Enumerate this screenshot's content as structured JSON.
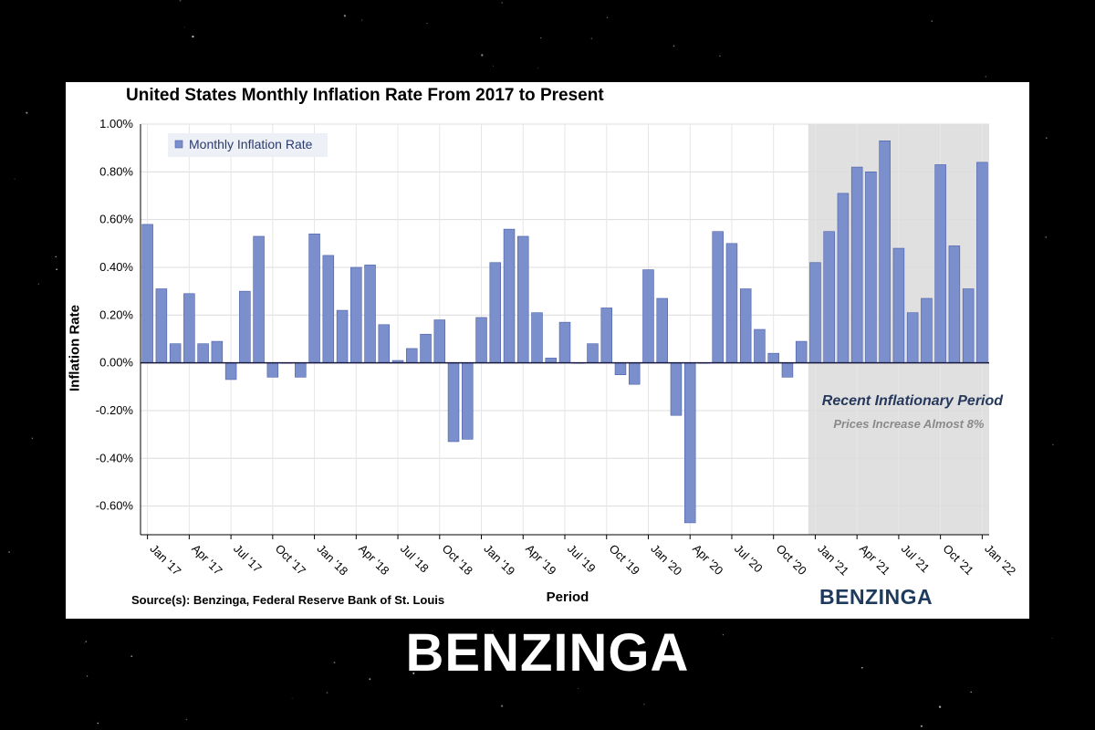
{
  "chart_data": {
    "type": "bar",
    "title": "United States Monthly Inflation Rate From 2017 to Present",
    "xlabel": "Period",
    "ylabel": "Inflation Rate",
    "ylim": [
      -0.72,
      1.0
    ],
    "yticks": [
      -0.6,
      -0.4,
      -0.2,
      0.0,
      0.2,
      0.4,
      0.6,
      0.8,
      1.0
    ],
    "ytick_labels": [
      "-0.60%",
      "-0.40%",
      "-0.20%",
      "0.00%",
      "0.20%",
      "0.40%",
      "0.60%",
      "0.80%",
      "1.00%"
    ],
    "grid": true,
    "legend_position": "top-left",
    "bar_color": "#7b8fcc",
    "bar_border_color": "#4a5fa8",
    "categories": [
      "Jan '17",
      "Feb '17",
      "Mar '17",
      "Apr '17",
      "May '17",
      "Jun '17",
      "Jul '17",
      "Aug '17",
      "Sep '17",
      "Oct '17",
      "Nov '17",
      "Dec '17",
      "Jan '18",
      "Feb '18",
      "Mar '18",
      "Apr '18",
      "May '18",
      "Jun '18",
      "Jul '18",
      "Aug '18",
      "Sep '18",
      "Oct '18",
      "Nov '18",
      "Dec '18",
      "Jan '19",
      "Feb '19",
      "Mar '19",
      "Apr '19",
      "May '19",
      "Jun '19",
      "Jul '19",
      "Aug '19",
      "Sep '19",
      "Oct '19",
      "Nov '19",
      "Dec '19",
      "Jan '20",
      "Feb '20",
      "Mar '20",
      "Apr '20",
      "May '20",
      "Jun '20",
      "Jul '20",
      "Aug '20",
      "Sep '20",
      "Oct '20",
      "Nov '20",
      "Dec '20",
      "Jan '21",
      "Feb '21",
      "Mar '21",
      "Apr '21",
      "May '21",
      "Jun '21",
      "Jul '21",
      "Aug '21",
      "Sep '21",
      "Oct '21",
      "Nov '21",
      "Dec '21",
      "Jan '22"
    ],
    "tick_labels": [
      "Jan '17",
      "Apr '17",
      "Jul '17",
      "Oct '17",
      "Jan '18",
      "Apr '18",
      "Jul '18",
      "Oct '18",
      "Jan '19",
      "Apr '19",
      "Jul '19",
      "Oct '19",
      "Jan '20",
      "Apr '20",
      "Jul '20",
      "Oct '20",
      "Jan '21",
      "Apr '21",
      "Jul '21",
      "Oct '21",
      "Jan '22"
    ],
    "series": [
      {
        "name": "Monthly Inflation Rate",
        "values": [
          0.58,
          0.31,
          0.08,
          0.29,
          0.08,
          0.09,
          -0.07,
          0.3,
          0.53,
          -0.06,
          0.0,
          -0.06,
          0.54,
          0.45,
          0.22,
          0.4,
          0.41,
          0.16,
          0.01,
          0.06,
          0.12,
          0.18,
          -0.33,
          -0.32,
          0.19,
          0.42,
          0.56,
          0.53,
          0.21,
          0.02,
          0.17,
          0.0,
          0.08,
          0.23,
          -0.05,
          -0.09,
          0.39,
          0.27,
          -0.22,
          -0.67,
          0.0,
          0.55,
          0.5,
          0.31,
          0.14,
          0.04,
          -0.06,
          0.09,
          0.42,
          0.55,
          0.71,
          0.82,
          0.8,
          0.93,
          0.48,
          0.21,
          0.27,
          0.83,
          0.49,
          0.31,
          0.84
        ]
      }
    ],
    "highlight_region": {
      "start": "Jan '21",
      "end": "Jan '22",
      "color": "#e0e0e0",
      "title": "Recent Inflationary Period",
      "subtitle": "Prices Increase Almost 8%"
    },
    "source": "Source(s): Benzinga, Federal Reserve Bank of St. Louis",
    "logo": "BENZINGA"
  },
  "footer": {
    "logo": "BENZINGA"
  }
}
